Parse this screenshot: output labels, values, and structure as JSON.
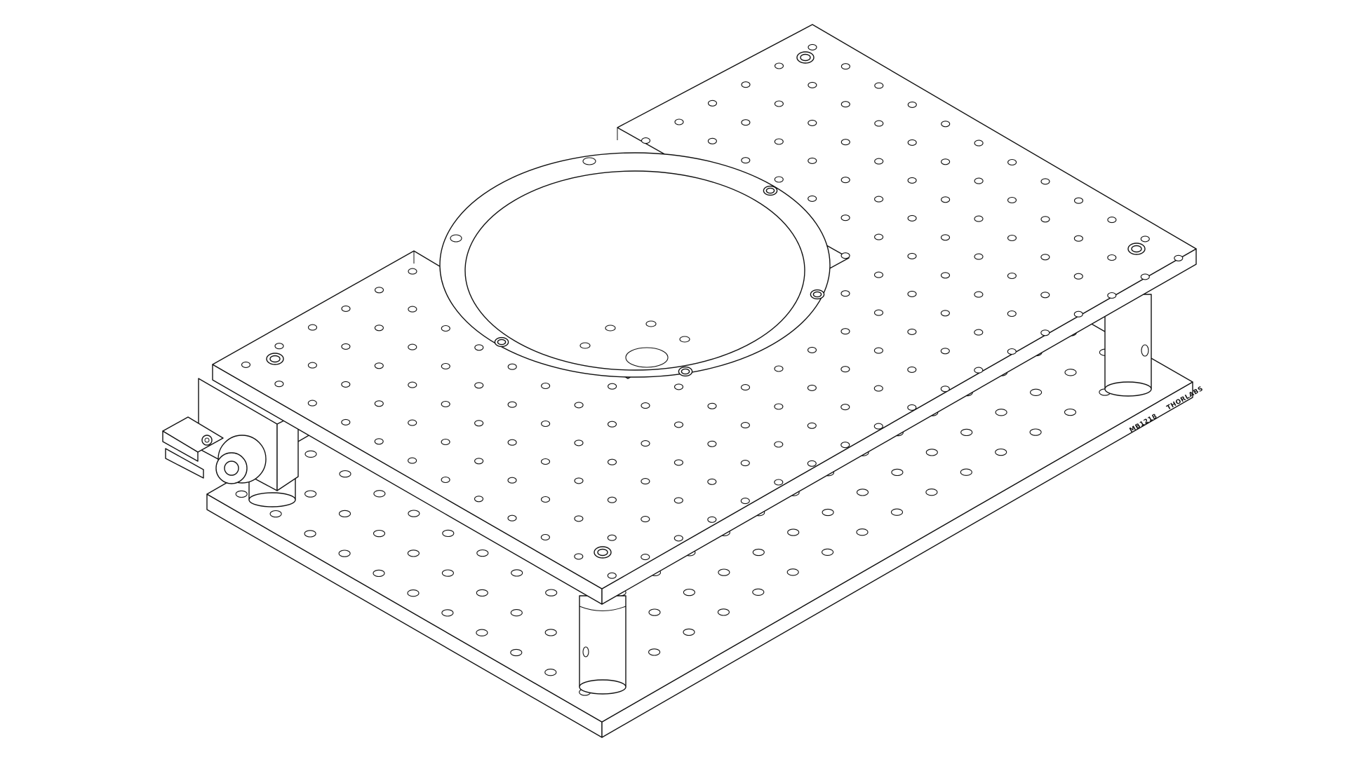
{
  "figure": {
    "label_brand": "THORLABS",
    "label_part": "MB1218"
  },
  "colors": {
    "line": "#111111",
    "background": "#ffffff"
  },
  "parts": {
    "bottom_plate": "breadboard-plate",
    "top_plate": "breadboard-plate",
    "rotation_mount": "ring-mount",
    "posts": "post",
    "clamp": "clamp-assembly"
  }
}
